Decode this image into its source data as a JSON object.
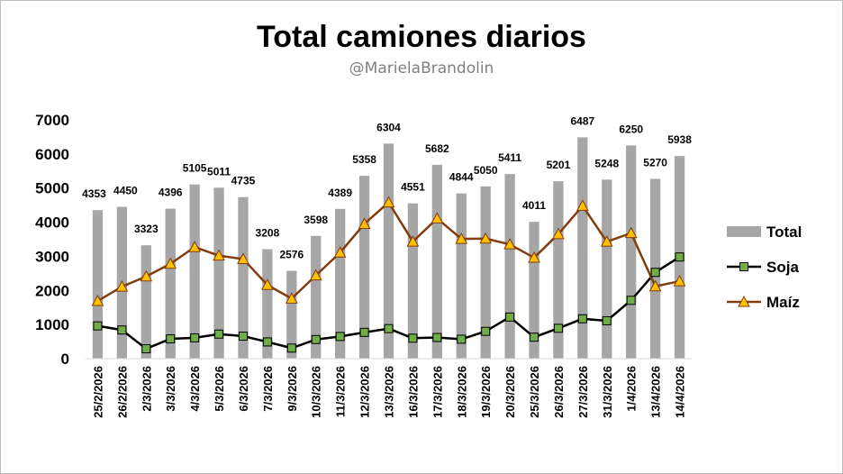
{
  "chart_data": {
    "type": "bar",
    "title": "Total camiones diarios",
    "subtitle": "@MarielaBrandolin",
    "xlabel": "",
    "ylabel": "",
    "ylim": [
      0,
      7000
    ],
    "yticks": [
      0,
      1000,
      2000,
      3000,
      4000,
      5000,
      6000,
      7000
    ],
    "categories": [
      "25/2/2026",
      "26/2/2026",
      "2/3/2026",
      "3/3/2026",
      "4/3/2026",
      "5/3/2026",
      "6/3/2026",
      "7/3/2026",
      "9/3/2026",
      "10/3/2026",
      "11/3/2026",
      "12/3/2026",
      "13/3/2026",
      "16/3/2026",
      "17/3/2026",
      "18/3/2026",
      "19/3/2026",
      "20/3/2026",
      "25/3/2026",
      "26/3/2026",
      "27/3/2026",
      "31/3/2026",
      "1/4/2026",
      "13/4/2026",
      "14/4/2026"
    ],
    "series": [
      {
        "name": "Total",
        "kind": "bar",
        "color": "#a6a6a6",
        "values": [
          4353,
          4450,
          3323,
          4396,
          5105,
          5011,
          4735,
          3208,
          2576,
          3598,
          4389,
          5358,
          6304,
          4551,
          5682,
          4844,
          5050,
          5411,
          4011,
          5201,
          6487,
          5248,
          6250,
          5270,
          5938
        ]
      },
      {
        "name": "Soja",
        "kind": "line",
        "color": "#000000",
        "marker": "square",
        "marker_color": "#70ad47",
        "values": [
          960,
          840,
          290,
          580,
          610,
          720,
          660,
          490,
          310,
          560,
          650,
          770,
          880,
          600,
          620,
          570,
          800,
          1220,
          630,
          890,
          1170,
          1110,
          1710,
          2530,
          2980
        ]
      },
      {
        "name": "Maíz",
        "kind": "line",
        "color": "#843c0c",
        "marker": "triangle",
        "marker_color": "#ffc000",
        "values": [
          1690,
          2110,
          2410,
          2780,
          3270,
          3020,
          2920,
          2160,
          1760,
          2440,
          3110,
          3950,
          4580,
          3430,
          4110,
          3510,
          3520,
          3350,
          2960,
          3650,
          4480,
          3430,
          3680,
          2120,
          2270
        ]
      }
    ],
    "legend": {
      "position": "right",
      "entries": [
        "Total",
        "Soja",
        "Maíz"
      ]
    },
    "grid": false
  }
}
